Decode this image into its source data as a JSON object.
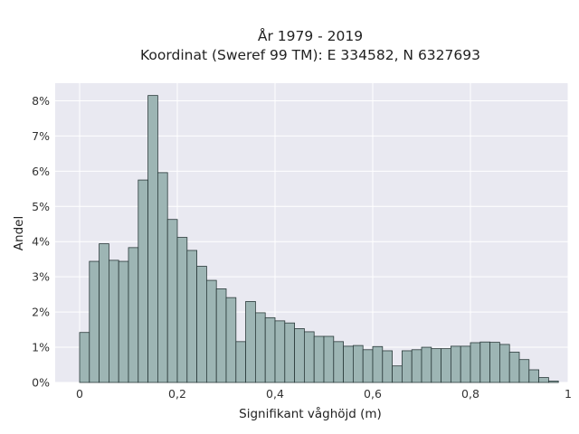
{
  "chart_data": {
    "type": "bar",
    "title_line1": "År 1979 - 2019",
    "title_line2": "Koordinat (Sweref 99 TM): E 334582, N 6327693",
    "xlabel": "Signifikant våghöjd (m)",
    "ylabel": "Andel",
    "xlim": [
      -0.05,
      1.0
    ],
    "ylim": [
      0,
      8.5
    ],
    "x_ticks": [
      0,
      0.2,
      0.4,
      0.6,
      0.8,
      1
    ],
    "x_tick_labels": [
      "0",
      "0,2",
      "0,4",
      "0,6",
      "0,8",
      "1"
    ],
    "y_ticks": [
      0,
      1,
      2,
      3,
      4,
      5,
      6,
      7,
      8
    ],
    "y_tick_labels": [
      "0%",
      "1%",
      "2%",
      "3%",
      "4%",
      "5%",
      "6%",
      "7%",
      "8%"
    ],
    "grid": true,
    "bin_width": 0.02,
    "bin_starts": [
      0.0,
      0.02,
      0.04,
      0.06,
      0.08,
      0.1,
      0.12,
      0.14,
      0.16,
      0.18,
      0.2,
      0.22,
      0.24,
      0.26,
      0.28,
      0.3,
      0.32,
      0.34,
      0.36,
      0.38,
      0.4,
      0.42,
      0.44,
      0.46,
      0.48,
      0.5,
      0.52,
      0.54,
      0.56,
      0.58,
      0.6,
      0.62,
      0.64,
      0.66,
      0.68,
      0.7,
      0.72,
      0.74,
      0.76,
      0.78,
      0.8,
      0.82,
      0.84,
      0.86,
      0.88,
      0.9,
      0.92,
      0.94,
      0.96
    ],
    "values": [
      1.42,
      3.44,
      3.94,
      3.47,
      3.44,
      3.83,
      5.75,
      8.15,
      5.96,
      4.63,
      4.12,
      3.75,
      3.3,
      2.9,
      2.66,
      2.41,
      1.16,
      2.3,
      1.98,
      1.84,
      1.75,
      1.69,
      1.53,
      1.44,
      1.31,
      1.31,
      1.16,
      1.03,
      1.05,
      0.93,
      1.02,
      0.9,
      0.47,
      0.9,
      0.93,
      1.0,
      0.96,
      0.96,
      1.03,
      1.03,
      1.13,
      1.15,
      1.14,
      1.08,
      0.86,
      0.65,
      0.36,
      0.14,
      0.04
    ]
  }
}
